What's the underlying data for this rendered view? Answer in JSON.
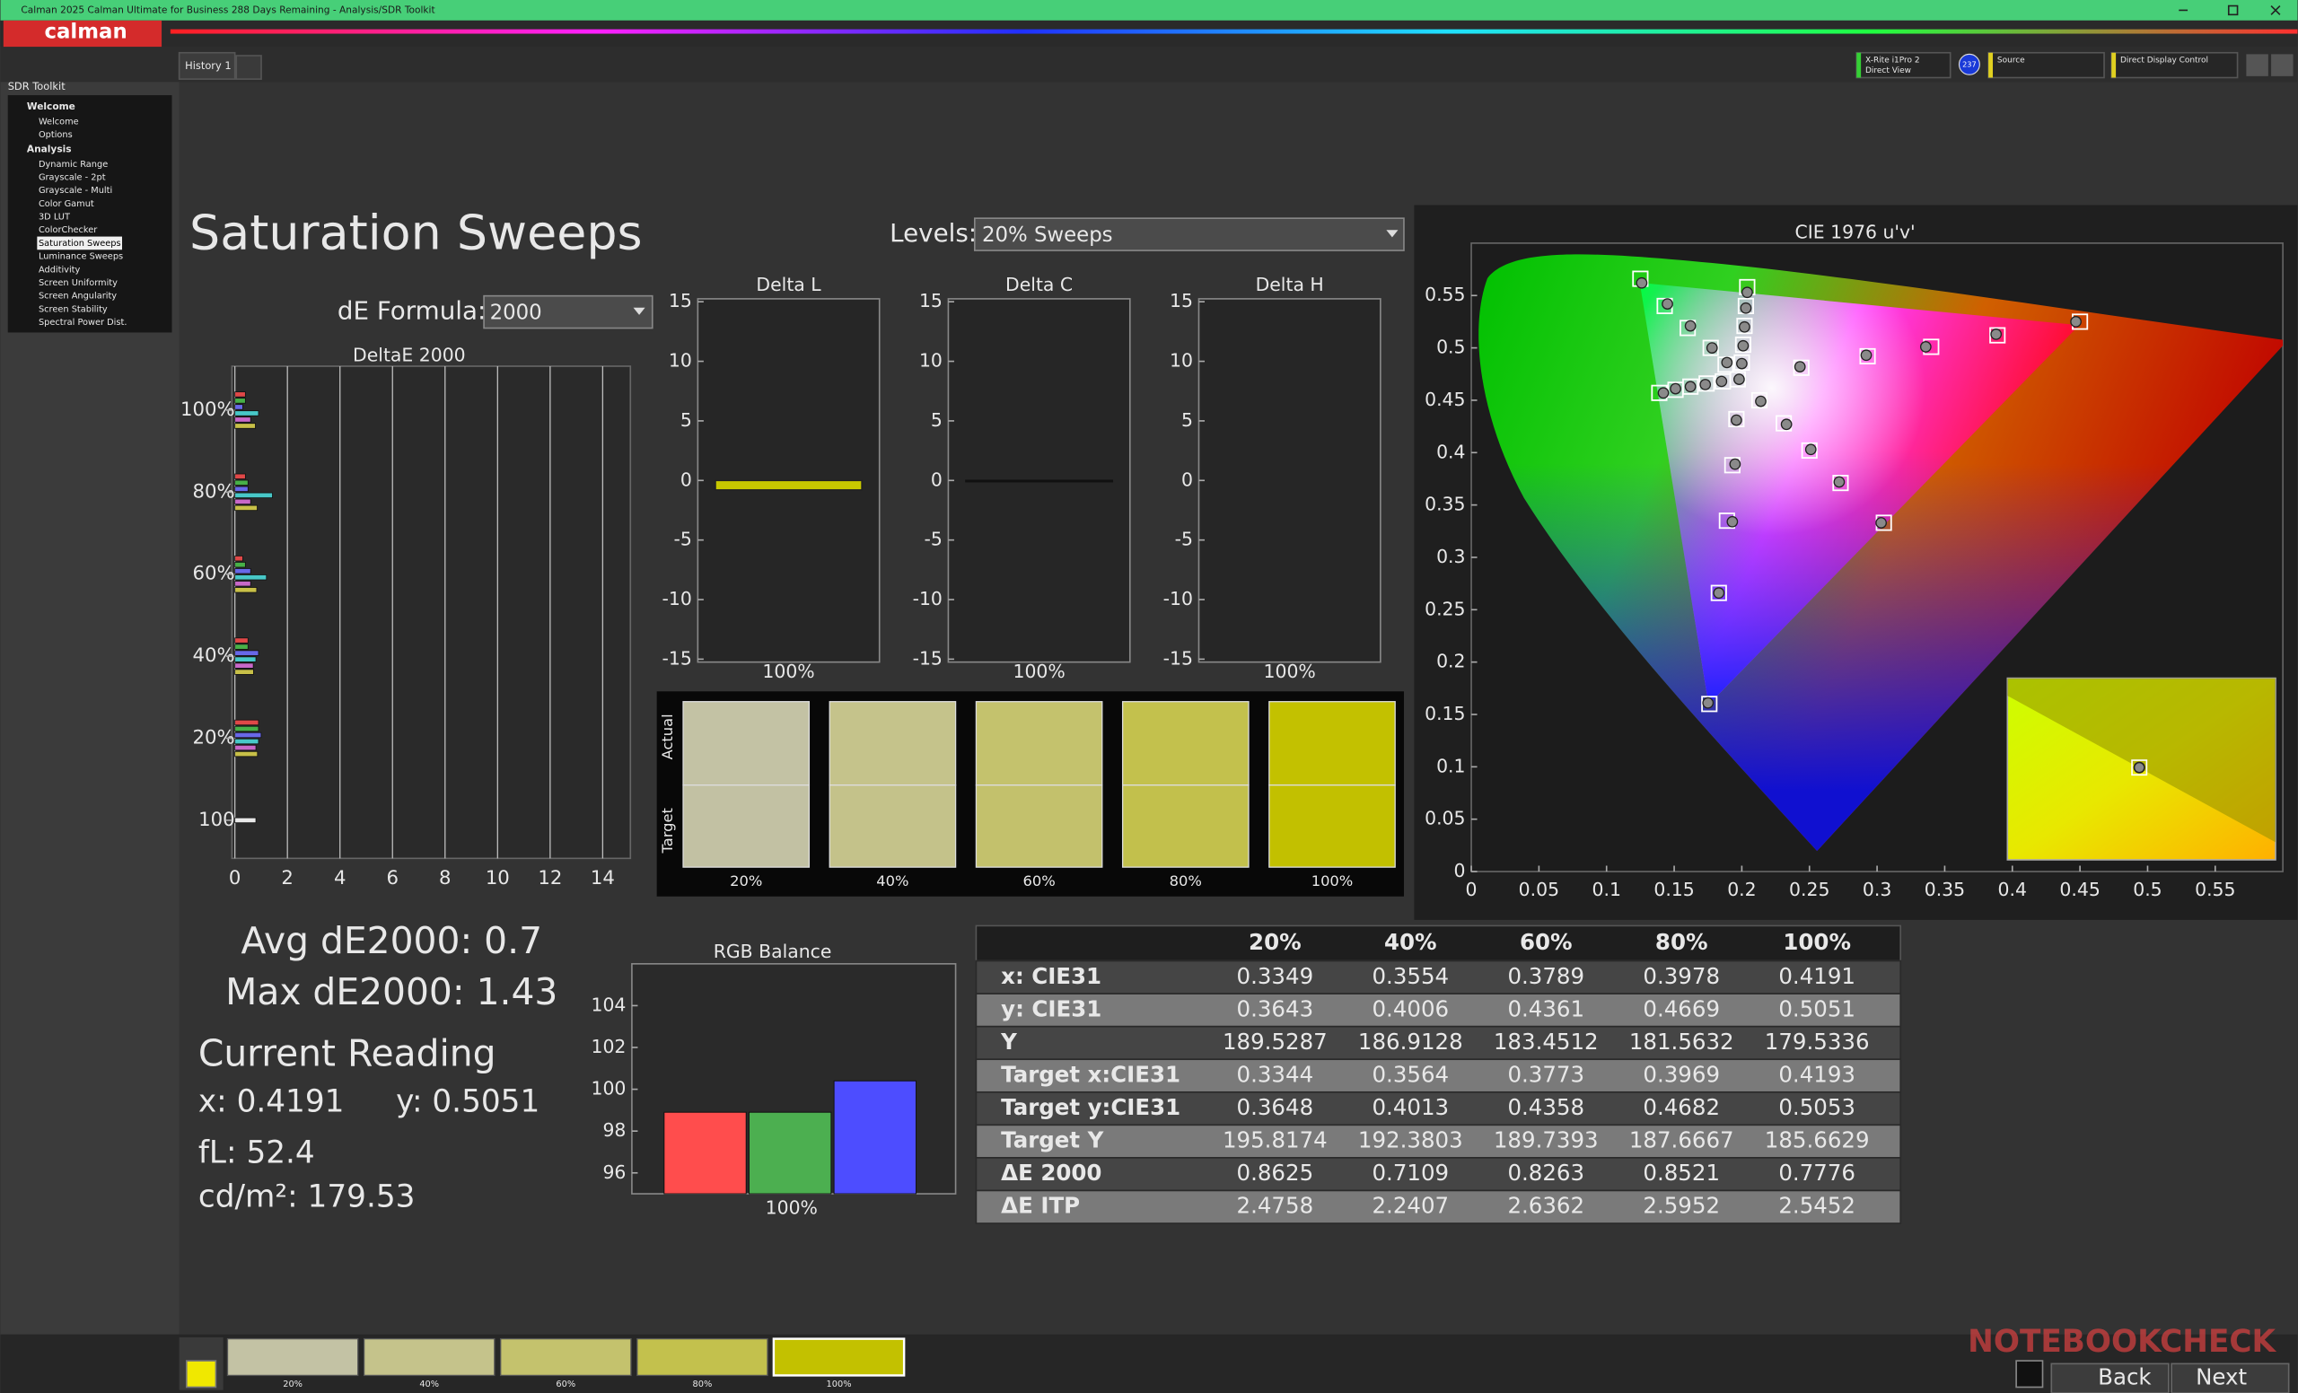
{
  "titlebar": {
    "title": "Calman 2025 Calman Ultimate for Business 288 Days Remaining  - Analysis/SDR Toolkit",
    "logo": "calman"
  },
  "tabs": [
    "History 1"
  ],
  "devices": {
    "meter": "X-Rite i1Pro 2",
    "meter_mode": "Direct View",
    "meter_badge": "237",
    "source": "Source",
    "display": "Direct Display Control"
  },
  "sidebar": {
    "title": "SDR Toolkit",
    "groups": [
      {
        "name": "Welcome",
        "items": [
          "Welcome",
          "Options"
        ]
      },
      {
        "name": "Analysis",
        "items": [
          "Dynamic Range",
          "Grayscale - 2pt",
          "Grayscale - Multi",
          "Color Gamut",
          "3D LUT",
          "ColorChecker",
          "Saturation Sweeps",
          "Luminance Sweeps",
          "Additivity",
          "Screen Uniformity",
          "Screen Angularity",
          "Screen Stability",
          "Spectral Power Dist."
        ]
      }
    ],
    "selected_item": {
      "group": 1,
      "item": 6
    }
  },
  "page": {
    "title": "Saturation Sweeps",
    "levels_label": "Levels:",
    "levels_value": "20% Sweeps",
    "formula_label": "dE Formula:",
    "formula_value": "2000"
  },
  "deltae_chart": {
    "type": "bar",
    "orientation": "horizontal",
    "title": "DeltaE 2000",
    "categories": [
      "100%",
      "80%",
      "60%",
      "40%",
      "20%",
      "100"
    ],
    "series": [
      {
        "color": "#e04848",
        "values": [
          0.4,
          0.4,
          0.3,
          0.5,
          0.9,
          null
        ]
      },
      {
        "color": "#48b048",
        "values": [
          0.4,
          0.5,
          0.4,
          0.5,
          0.9,
          null
        ]
      },
      {
        "color": "#6868e8",
        "values": [
          0.3,
          0.5,
          0.6,
          0.9,
          1.0,
          null
        ]
      },
      {
        "color": "#48c8c8",
        "values": [
          0.9,
          1.43,
          1.2,
          0.8,
          0.9,
          null
        ]
      },
      {
        "color": "#c868c8",
        "values": [
          0.6,
          0.6,
          0.6,
          0.7,
          0.8,
          null
        ]
      },
      {
        "color": "#c8c048",
        "values": [
          0.78,
          0.85,
          0.83,
          0.71,
          0.86,
          null
        ]
      },
      {
        "color": "#e8e8e8",
        "values": [
          null,
          null,
          null,
          null,
          null,
          0.8
        ]
      }
    ],
    "xlim": [
      0,
      15
    ],
    "xticks": [
      0,
      2,
      4,
      6,
      8,
      10,
      12,
      14
    ],
    "grid": true
  },
  "delta_charts": [
    {
      "type": "bar",
      "title": "Delta L",
      "categories": [
        "100%"
      ],
      "values": [
        -0.8
      ],
      "color": "#c8c800",
      "ylim": [
        -15,
        15
      ],
      "yticks": [
        -15,
        -10,
        -5,
        0,
        5,
        10,
        15
      ]
    },
    {
      "type": "bar",
      "title": "Delta C",
      "categories": [
        "100%"
      ],
      "values": [
        -0.1
      ],
      "color": "#111111",
      "ylim": [
        -15,
        15
      ],
      "yticks": [
        -15,
        -10,
        -5,
        0,
        5,
        10,
        15
      ]
    },
    {
      "type": "bar",
      "title": "Delta H",
      "categories": [
        "100%"
      ],
      "values": [
        0
      ],
      "color": "#3a3a3a",
      "ylim": [
        -15,
        15
      ],
      "yticks": [
        -15,
        -10,
        -5,
        0,
        5,
        10,
        15
      ]
    }
  ],
  "swatches": {
    "row_labels": [
      "Actual",
      "Target"
    ],
    "categories": [
      "20%",
      "40%",
      "60%",
      "80%",
      "100%"
    ],
    "actual_colors": [
      "#c3c2a4",
      "#c5c38b",
      "#c4c26d",
      "#c3c14d",
      "#c3c100"
    ],
    "target_colors": [
      "#c2c1a3",
      "#c4c28a",
      "#c3c16c",
      "#c2c04c",
      "#c2c000"
    ]
  },
  "cie_chart": {
    "type": "scatter",
    "title": "CIE 1976 u'v'",
    "xlim": [
      0,
      0.6
    ],
    "ylim": [
      0,
      0.6
    ],
    "xticks": [
      0,
      0.05,
      0.1,
      0.15,
      0.2,
      0.25,
      0.3,
      0.35,
      0.4,
      0.45,
      0.5,
      0.55
    ],
    "yticks": [
      0,
      0.05,
      0.1,
      0.15,
      0.2,
      0.25,
      0.3,
      0.35,
      0.4,
      0.45,
      0.5,
      0.55
    ],
    "series": [
      {
        "marker": "square",
        "color": "#ffffff",
        "x": [
          0.45,
          0.389,
          0.34,
          0.293,
          0.244,
          0.125,
          0.143,
          0.16,
          0.177,
          0.188,
          0.176,
          0.183,
          0.189,
          0.193,
          0.196,
          0.139,
          0.151,
          0.162,
          0.174,
          0.186,
          0.305,
          0.273,
          0.25,
          0.231,
          0.213,
          0.204,
          0.203,
          0.202,
          0.201,
          0.2,
          0.197
        ],
        "y": [
          0.525,
          0.512,
          0.501,
          0.492,
          0.481,
          0.566,
          0.54,
          0.519,
          0.5,
          0.484,
          0.16,
          0.266,
          0.335,
          0.388,
          0.432,
          0.457,
          0.46,
          0.463,
          0.466,
          0.468,
          0.333,
          0.371,
          0.402,
          0.428,
          0.45,
          0.558,
          0.54,
          0.521,
          0.503,
          0.486,
          0.47
        ]
      },
      {
        "marker": "circle",
        "color": "#8a8a8a",
        "x": [
          0.447,
          0.388,
          0.336,
          0.292,
          0.243,
          0.126,
          0.145,
          0.162,
          0.178,
          0.189,
          0.175,
          0.183,
          0.193,
          0.195,
          0.196,
          0.142,
          0.151,
          0.162,
          0.173,
          0.185,
          0.303,
          0.272,
          0.251,
          0.233,
          0.214,
          0.204,
          0.203,
          0.202,
          0.201,
          0.2,
          0.198
        ],
        "y": [
          0.525,
          0.513,
          0.501,
          0.493,
          0.482,
          0.562,
          0.542,
          0.521,
          0.5,
          0.486,
          0.161,
          0.266,
          0.334,
          0.389,
          0.431,
          0.457,
          0.461,
          0.463,
          0.465,
          0.468,
          0.333,
          0.372,
          0.403,
          0.427,
          0.449,
          0.553,
          0.538,
          0.52,
          0.502,
          0.485,
          0.47
        ]
      }
    ]
  },
  "summary": {
    "avg": "Avg dE2000: 0.7",
    "max": "Max dE2000: 1.43",
    "reading_title": "Current Reading",
    "x": "x: 0.4191",
    "y": "y: 0.5051",
    "fl": "fL: 52.4",
    "cdm2": "cd/m²: 179.53"
  },
  "rgb_balance": {
    "type": "bar",
    "title": "RGB Balance",
    "categories": [
      "100%"
    ],
    "series": [
      {
        "color": "#ff4d4d",
        "values": [
          98.9
        ]
      },
      {
        "color": "#4caf50",
        "values": [
          98.9
        ]
      },
      {
        "color": "#4d4dff",
        "values": [
          100.4
        ]
      }
    ],
    "ylim": [
      95,
      106
    ],
    "yticks": [
      96,
      98,
      100,
      102,
      104
    ]
  },
  "table": {
    "columns": [
      "20%",
      "40%",
      "60%",
      "80%",
      "100%"
    ],
    "rows": [
      {
        "label": "x: CIE31",
        "values": [
          0.3349,
          0.3554,
          0.3789,
          0.3978,
          0.4191
        ]
      },
      {
        "label": "y: CIE31",
        "values": [
          0.3643,
          0.4006,
          0.4361,
          0.4669,
          0.5051
        ]
      },
      {
        "label": "Y",
        "values": [
          189.5287,
          186.9128,
          183.4512,
          181.5632,
          179.5336
        ]
      },
      {
        "label": "Target x:CIE31",
        "values": [
          0.3344,
          0.3564,
          0.3773,
          0.3969,
          0.4193
        ]
      },
      {
        "label": "Target y:CIE31",
        "values": [
          0.3648,
          0.4013,
          0.4358,
          0.4682,
          0.5053
        ]
      },
      {
        "label": "Target Y",
        "values": [
          195.8174,
          192.3803,
          189.7393,
          187.6667,
          185.6629
        ]
      },
      {
        "label": "ΔE 2000",
        "values": [
          0.8625,
          0.7109,
          0.8263,
          0.8521,
          0.7776
        ]
      },
      {
        "label": "ΔE ITP",
        "values": [
          2.4758,
          2.2407,
          2.6362,
          2.5952,
          2.5452
        ]
      }
    ]
  },
  "footer": {
    "thumbnails": {
      "labels": [
        "20%",
        "40%",
        "60%",
        "80%",
        "100%"
      ],
      "colors": [
        "#c3c2a4",
        "#c5c38b",
        "#c4c26d",
        "#c3c14d",
        "#c3c100"
      ]
    },
    "current_color": "#f0e800",
    "back": "Back",
    "next": "Next",
    "watermark": "NOTEBOOKCHECK"
  }
}
